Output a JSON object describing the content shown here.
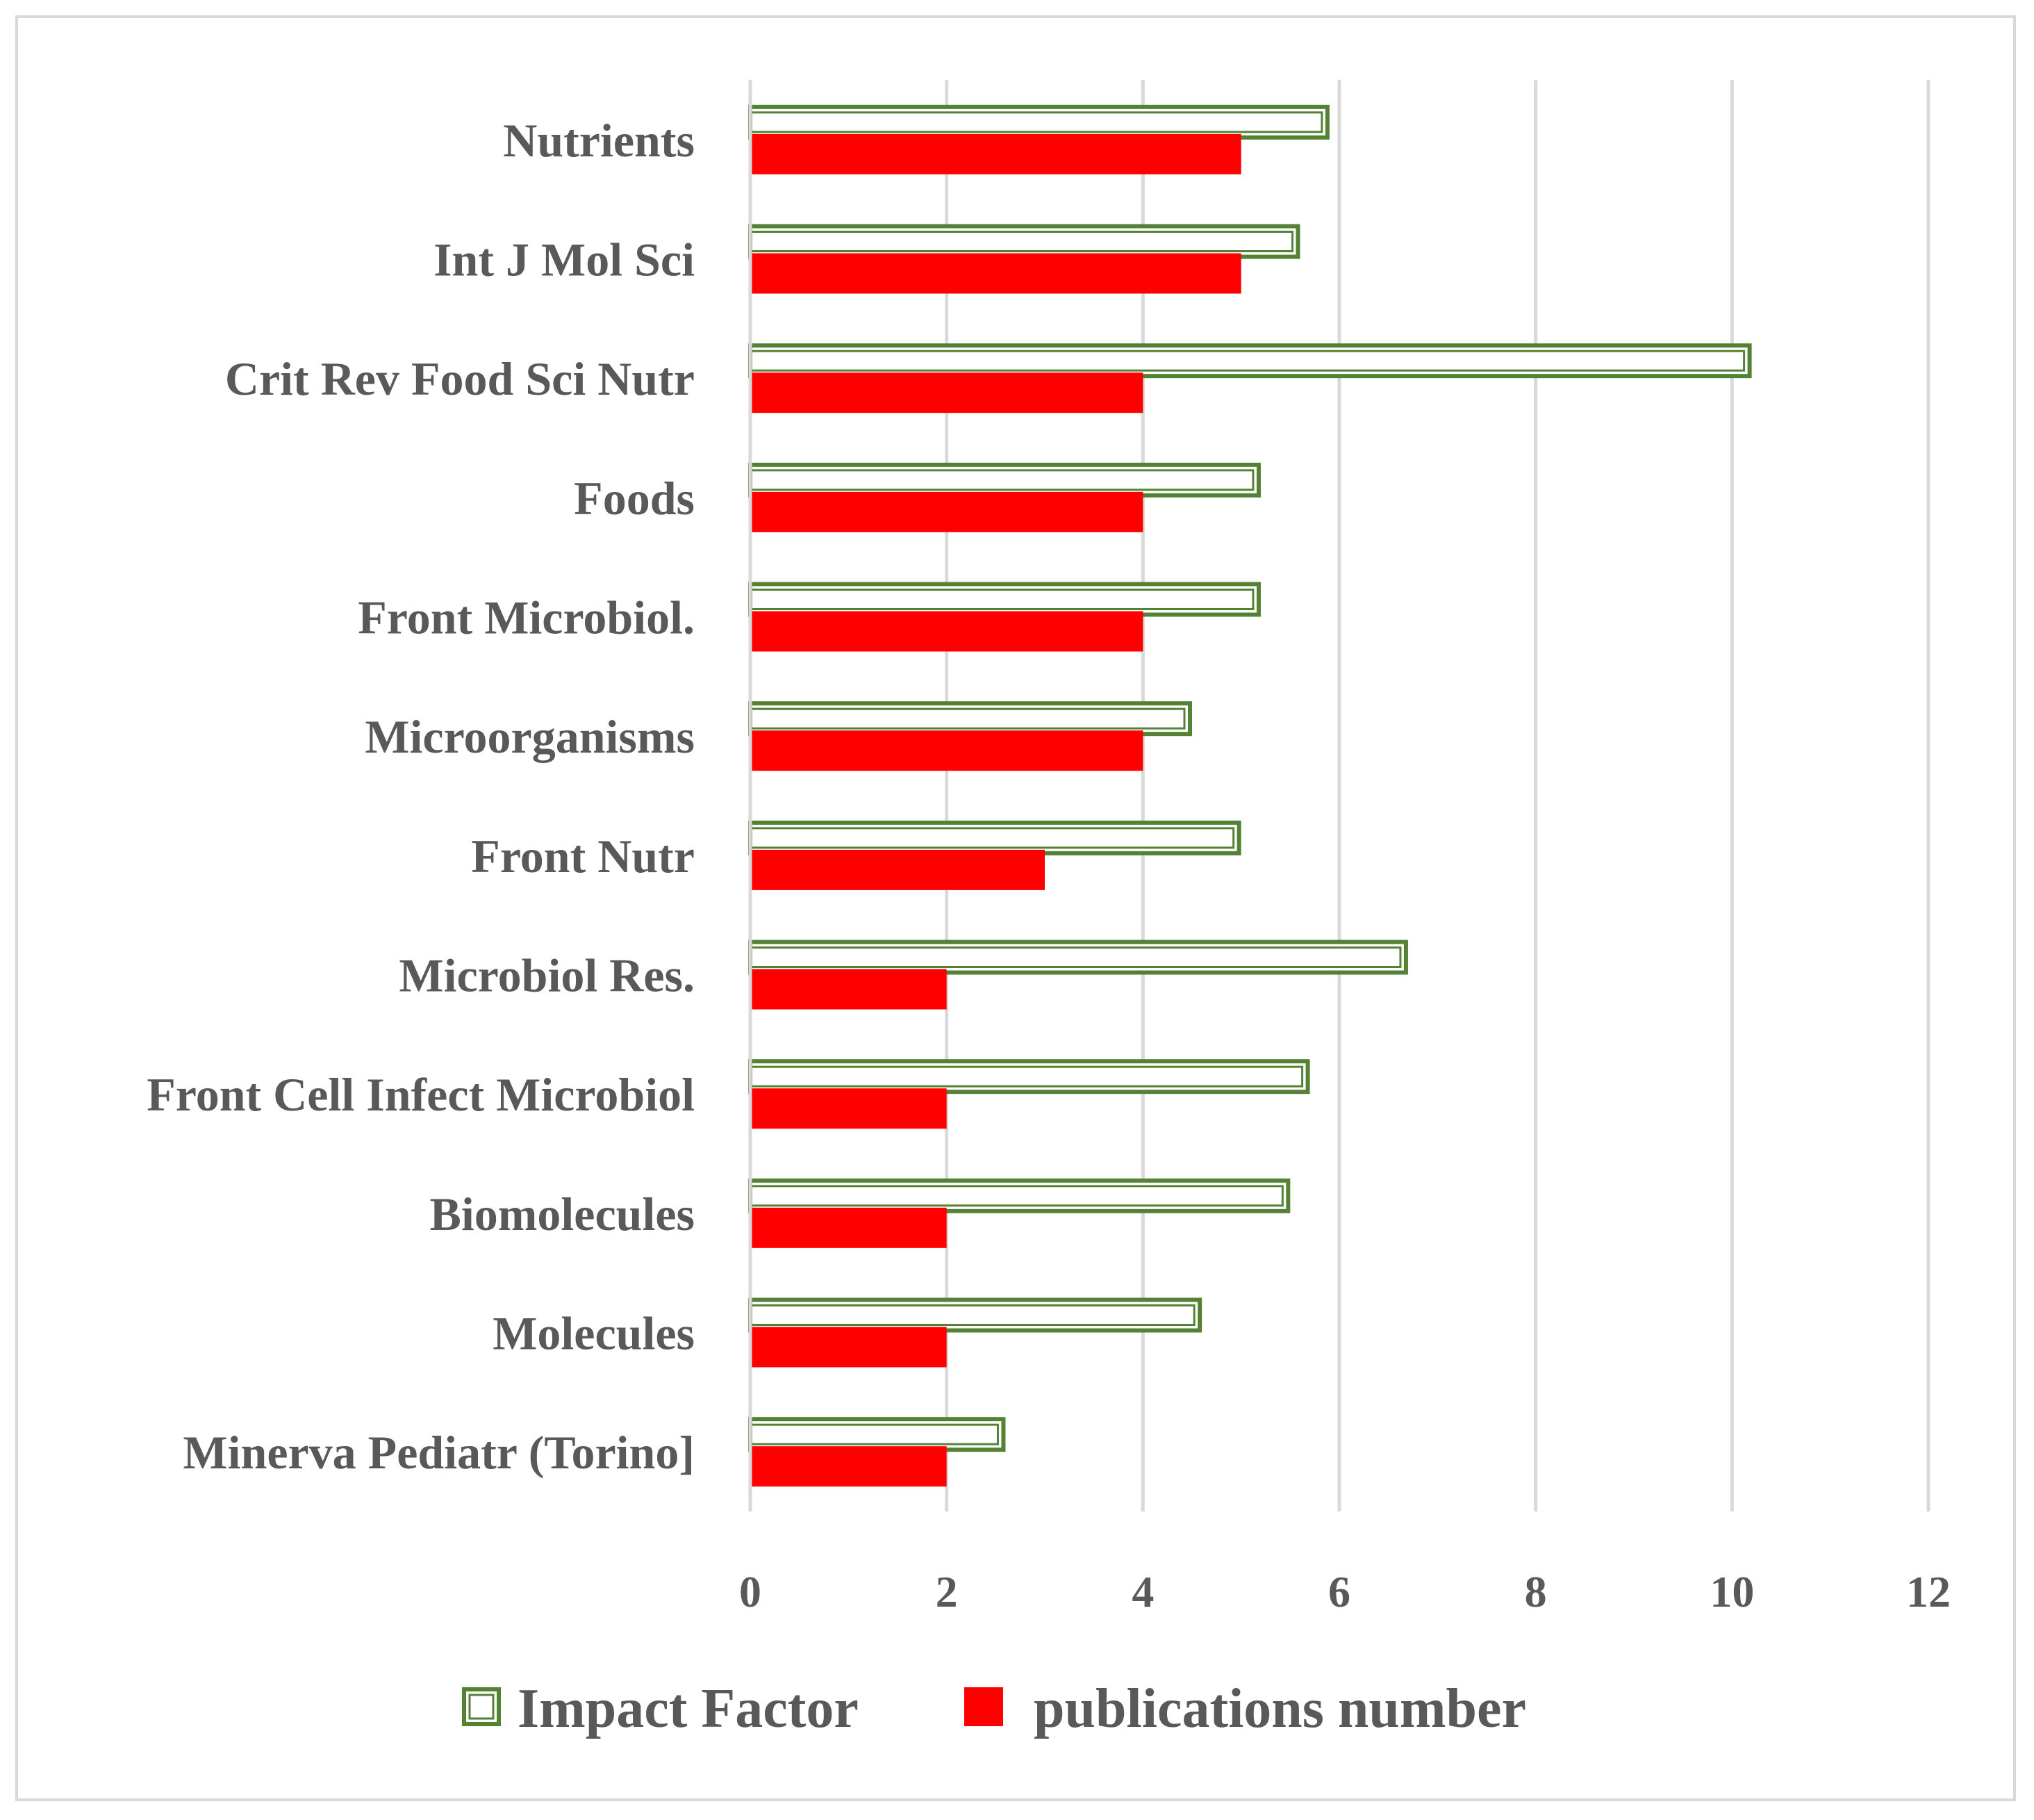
{
  "chart_data": {
    "type": "bar",
    "orientation": "horizontal",
    "categories": [
      "Nutrients",
      "Int J Mol Sci",
      "Crit Rev Food Sci Nutr",
      "Foods",
      "Front Microbiol. ",
      "Microorganisms",
      "Front Nutr",
      "Microbiol Res. ",
      "Front Cell Infect Microbiol",
      "Biomolecules",
      "Molecules",
      "Minerva Pediatr (Torino]"
    ],
    "series": [
      {
        "name": "Impact Factor",
        "color": "#548235",
        "style": "outline",
        "values": [
          5.9,
          5.6,
          10.2,
          5.2,
          5.2,
          4.5,
          5.0,
          6.7,
          5.7,
          5.5,
          4.6,
          2.6
        ]
      },
      {
        "name": "publications number",
        "color": "#ff0000",
        "style": "solid",
        "values": [
          5,
          5,
          4,
          4,
          4,
          4,
          3,
          2,
          2,
          2,
          2,
          2
        ]
      }
    ],
    "xlim": [
      0,
      12
    ],
    "xticks": [
      0,
      2,
      4,
      6,
      8,
      10,
      12
    ],
    "grid": true,
    "legend": "bottom",
    "title": "",
    "xlabel": "",
    "ylabel": ""
  }
}
